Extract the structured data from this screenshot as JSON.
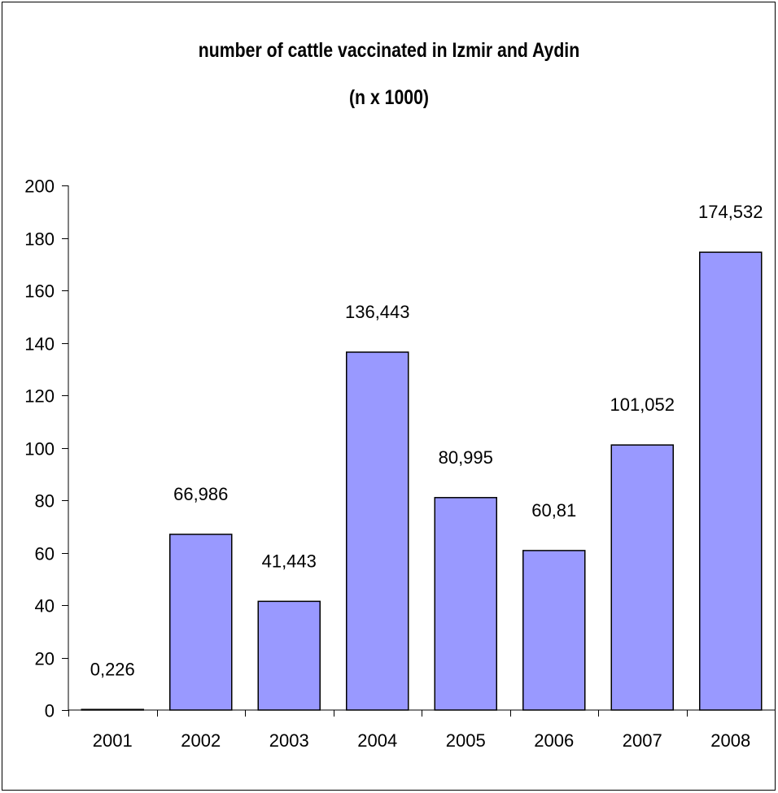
{
  "chart_data": {
    "type": "bar",
    "title_line1": "number of cattle vaccinated in Izmir and Aydin",
    "title_line2": "(n x 1000)",
    "categories": [
      "2001",
      "2002",
      "2003",
      "2004",
      "2005",
      "2006",
      "2007",
      "2008"
    ],
    "values": [
      0.226,
      66.986,
      41.443,
      136.443,
      80.995,
      60.81,
      101.052,
      174.532
    ],
    "data_labels": [
      "0,226",
      "66,986",
      "41,443",
      "136,443",
      "80,995",
      "60,81",
      "101,052",
      "174,532"
    ],
    "y_ticks": [
      "0",
      "20",
      "40",
      "60",
      "80",
      "100",
      "120",
      "140",
      "160",
      "180",
      "200"
    ],
    "ylim": [
      0,
      200
    ],
    "xlabel": "",
    "ylabel": "",
    "grid": false,
    "legend": "none",
    "bar_color": "#9999ff",
    "bar_stroke": "#000000"
  }
}
